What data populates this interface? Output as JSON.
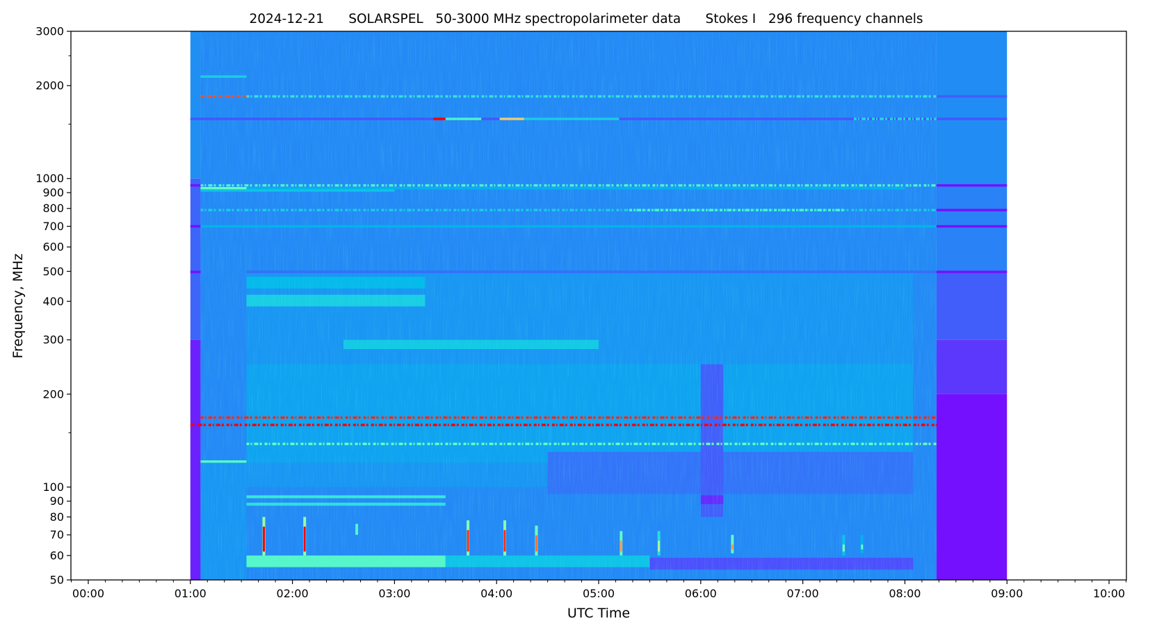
{
  "chart_data": {
    "type": "heatmap",
    "title": "2024-12-21      SOLARSPEL   50-3000 MHz spectropolarimeter data      Stokes I   296 frequency channels",
    "xlabel": "UTC Time",
    "ylabel": "Frequency, MHz",
    "x_units": "hours UTC",
    "xlim": [
      -0.17,
      10.17
    ],
    "ylim": [
      50,
      3000
    ],
    "yscale": "log",
    "colormap": "rainbow",
    "value_range": [
      0,
      1
    ],
    "grid": false,
    "xticks": [
      {
        "v": 0,
        "label": "00:00"
      },
      {
        "v": 1,
        "label": "01:00"
      },
      {
        "v": 2,
        "label": "02:00"
      },
      {
        "v": 3,
        "label": "03:00"
      },
      {
        "v": 4,
        "label": "04:00"
      },
      {
        "v": 5,
        "label": "05:00"
      },
      {
        "v": 6,
        "label": "06:00"
      },
      {
        "v": 7,
        "label": "07:00"
      },
      {
        "v": 8,
        "label": "08:00"
      },
      {
        "v": 9,
        "label": "09:00"
      },
      {
        "v": 10,
        "label": "10:00"
      }
    ],
    "yticks": [
      {
        "v": 50,
        "label": "50"
      },
      {
        "v": 60,
        "label": "60"
      },
      {
        "v": 70,
        "label": "70"
      },
      {
        "v": 80,
        "label": "80"
      },
      {
        "v": 90,
        "label": "90"
      },
      {
        "v": 100,
        "label": "100"
      },
      {
        "v": 200,
        "label": "200"
      },
      {
        "v": 300,
        "label": "300"
      },
      {
        "v": 400,
        "label": "400"
      },
      {
        "v": 500,
        "label": "500"
      },
      {
        "v": 600,
        "label": "600"
      },
      {
        "v": 700,
        "label": "700"
      },
      {
        "v": 800,
        "label": "800"
      },
      {
        "v": 900,
        "label": "900"
      },
      {
        "v": 1000,
        "label": "1000"
      },
      {
        "v": 2000,
        "label": "2000"
      },
      {
        "v": 3000,
        "label": "3000"
      }
    ],
    "yminor": [
      150,
      1500,
      2500
    ],
    "segments": [
      {
        "t0": 1.0,
        "t1": 1.1,
        "f0": 1000,
        "f1": 3000,
        "v": 0.19
      },
      {
        "t0": 1.0,
        "t1": 1.1,
        "f0": 300,
        "f1": 1000,
        "v": 0.13
      },
      {
        "t0": 1.0,
        "t1": 1.1,
        "f0": 50,
        "f1": 300,
        "v": 0.04
      },
      {
        "t0": 1.1,
        "t1": 8.31,
        "f0": 50,
        "f1": 3000,
        "v": 0.18
      },
      {
        "t0": 1.55,
        "t1": 8.08,
        "f0": 100,
        "f1": 500,
        "v": 0.2
      },
      {
        "t0": 1.55,
        "t1": 8.08,
        "f0": 120,
        "f1": 250,
        "v": 0.22
      },
      {
        "t0": 4.5,
        "t1": 8.08,
        "f0": 95,
        "f1": 130,
        "v": 0.15
      },
      {
        "t0": 1.1,
        "t1": 1.55,
        "f0": 50,
        "f1": 120,
        "v": 0.2
      },
      {
        "t0": 8.31,
        "t1": 9.0,
        "f0": 950,
        "f1": 3000,
        "v": 0.185
      },
      {
        "t0": 8.31,
        "t1": 9.0,
        "f0": 500,
        "f1": 950,
        "v": 0.17
      },
      {
        "t0": 8.31,
        "t1": 9.0,
        "f0": 300,
        "f1": 500,
        "v": 0.12
      },
      {
        "t0": 8.31,
        "t1": 9.0,
        "f0": 200,
        "f1": 300,
        "v": 0.07
      },
      {
        "t0": 8.31,
        "t1": 9.0,
        "f0": 50,
        "f1": 200,
        "v": 0.02
      },
      {
        "t0": 1.55,
        "t1": 3.5,
        "f0": 55,
        "f1": 60,
        "v": 0.42
      },
      {
        "t0": 3.5,
        "t1": 5.5,
        "f0": 55,
        "f1": 60,
        "v": 0.28
      },
      {
        "t0": 5.5,
        "t1": 8.08,
        "f0": 54,
        "f1": 59,
        "v": 0.1
      },
      {
        "t0": 1.55,
        "t1": 3.5,
        "f0": 92,
        "f1": 94,
        "v": 0.36
      },
      {
        "t0": 1.55,
        "t1": 3.5,
        "f0": 87,
        "f1": 89,
        "v": 0.34
      },
      {
        "t0": 1.55,
        "t1": 3.3,
        "f0": 385,
        "f1": 420,
        "v": 0.3
      },
      {
        "t0": 1.55,
        "t1": 3.3,
        "f0": 440,
        "f1": 480,
        "v": 0.26
      },
      {
        "t0": 2.5,
        "t1": 5.0,
        "f0": 280,
        "f1": 300,
        "v": 0.29
      },
      {
        "t0": 6.0,
        "t1": 6.22,
        "f0": 80,
        "f1": 250,
        "v": 0.12
      },
      {
        "t0": 6.0,
        "t1": 6.22,
        "f0": 88,
        "f1": 94,
        "v": 0.05
      }
    ],
    "lines": [
      {
        "f": 2140,
        "t0": 1.1,
        "t1": 1.55,
        "v": 0.3,
        "dotted": false
      },
      {
        "f": 1845,
        "t0": 1.1,
        "t1": 1.55,
        "v": 0.9,
        "dotted": true
      },
      {
        "f": 1845,
        "t0": 1.55,
        "t1": 8.31,
        "v": 0.35,
        "dotted": true
      },
      {
        "f": 1845,
        "t0": 8.31,
        "t1": 9.0,
        "v": 0.12,
        "dotted": false
      },
      {
        "f": 1560,
        "t0": 1.0,
        "t1": 9.0,
        "v": 0.11,
        "dotted": false
      },
      {
        "f": 1560,
        "t0": 3.38,
        "t1": 3.5,
        "v": 1.0,
        "dotted": false
      },
      {
        "f": 1560,
        "t0": 3.5,
        "t1": 3.85,
        "v": 0.4,
        "dotted": false
      },
      {
        "f": 1560,
        "t0": 4.03,
        "t1": 4.27,
        "v": 0.7,
        "dotted": false
      },
      {
        "f": 1560,
        "t0": 4.27,
        "t1": 5.2,
        "v": 0.3,
        "dotted": false
      },
      {
        "f": 1560,
        "t0": 7.5,
        "t1": 8.31,
        "v": 0.32,
        "dotted": true
      },
      {
        "f": 950,
        "t0": 1.0,
        "t1": 1.1,
        "v": 0.02,
        "dotted": false
      },
      {
        "f": 950,
        "t0": 1.1,
        "t1": 8.31,
        "v": 0.4,
        "dotted": true
      },
      {
        "f": 950,
        "t0": 8.31,
        "t1": 9.0,
        "v": 0.02,
        "dotted": false
      },
      {
        "f": 930,
        "t0": 1.1,
        "t1": 1.55,
        "v": 0.45,
        "dotted": false
      },
      {
        "f": 930,
        "t0": 1.55,
        "t1": 8.0,
        "v": 0.25,
        "dotted": false
      },
      {
        "f": 915,
        "t0": 1.1,
        "t1": 3.0,
        "v": 0.28,
        "dotted": false
      },
      {
        "f": 790,
        "t0": 1.1,
        "t1": 8.31,
        "v": 0.3,
        "dotted": true
      },
      {
        "f": 790,
        "t0": 5.3,
        "t1": 7.4,
        "v": 0.4,
        "dotted": true
      },
      {
        "f": 790,
        "t0": 8.31,
        "t1": 9.0,
        "v": 0.02,
        "dotted": false
      },
      {
        "f": 700,
        "t0": 1.0,
        "t1": 1.1,
        "v": 0.02,
        "dotted": false
      },
      {
        "f": 700,
        "t0": 1.1,
        "t1": 8.31,
        "v": 0.25,
        "dotted": false
      },
      {
        "f": 700,
        "t0": 8.31,
        "t1": 9.0,
        "v": 0.02,
        "dotted": false
      },
      {
        "f": 498,
        "t0": 1.0,
        "t1": 1.1,
        "v": 0.02,
        "dotted": false
      },
      {
        "f": 498,
        "t0": 1.55,
        "t1": 8.31,
        "v": 0.14,
        "dotted": false
      },
      {
        "f": 498,
        "t0": 8.31,
        "t1": 9.0,
        "v": 0.02,
        "dotted": false
      },
      {
        "f": 168,
        "t0": 1.1,
        "t1": 8.31,
        "v": 0.95,
        "dotted": true
      },
      {
        "f": 159,
        "t0": 1.0,
        "t1": 8.31,
        "v": 1.0,
        "dotted": true
      },
      {
        "f": 138,
        "t0": 1.55,
        "t1": 8.31,
        "v": 0.45,
        "dotted": true
      },
      {
        "f": 121,
        "t0": 1.1,
        "t1": 1.55,
        "v": 0.42,
        "dotted": false
      }
    ],
    "bursts": [
      {
        "t": 1.72,
        "f0": 60,
        "f1": 80,
        "v": 1.0
      },
      {
        "t": 2.12,
        "f0": 60,
        "f1": 80,
        "v": 1.0
      },
      {
        "t": 2.63,
        "f0": 70,
        "f1": 76,
        "v": 0.75
      },
      {
        "t": 3.72,
        "f0": 60,
        "f1": 78,
        "v": 0.95
      },
      {
        "t": 4.08,
        "f0": 60,
        "f1": 78,
        "v": 0.95
      },
      {
        "t": 4.39,
        "f0": 60,
        "f1": 75,
        "v": 0.85
      },
      {
        "t": 5.22,
        "f0": 60,
        "f1": 72,
        "v": 0.8
      },
      {
        "t": 5.59,
        "f0": 60,
        "f1": 72,
        "v": 0.6
      },
      {
        "t": 6.31,
        "f0": 61,
        "f1": 70,
        "v": 0.8
      },
      {
        "t": 7.4,
        "f0": 60,
        "f1": 70,
        "v": 0.5
      },
      {
        "t": 7.58,
        "f0": 61,
        "f1": 70,
        "v": 0.45
      }
    ]
  }
}
